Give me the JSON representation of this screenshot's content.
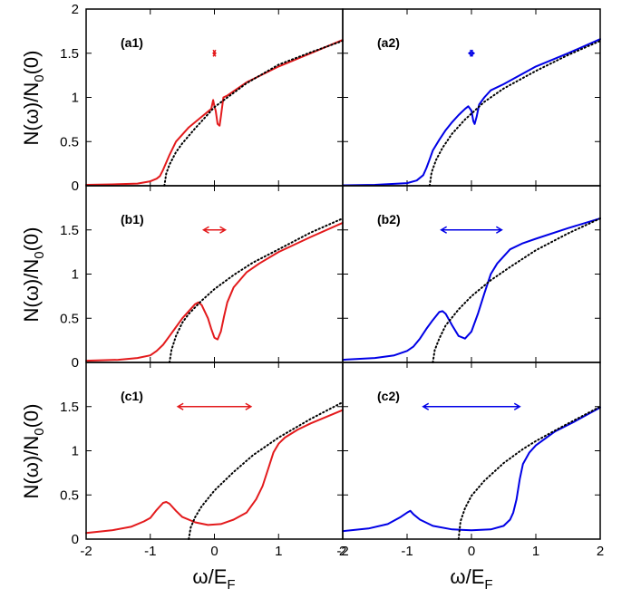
{
  "figure": {
    "ylabel": "N(ω)/N₀(0)",
    "xlabel": "ω/E_F",
    "xlabel_main": "ω/E",
    "xlabel_sub": "F",
    "ylabel_main_1": "N(ω)/N",
    "ylabel_sub": "0",
    "ylabel_main_2": "(0)"
  },
  "colors": {
    "left": "#e31a1c",
    "right": "#0000e6",
    "reference": "#000000"
  },
  "chart_data": [
    {
      "id": "a1",
      "label": "(a1)",
      "type": "line",
      "color": "#e31a1c",
      "xlim": [
        -2,
        2
      ],
      "ylim": [
        0,
        2
      ],
      "yticks": [
        0,
        0.5,
        1,
        1.5,
        2
      ],
      "ytick_labels": [
        "0",
        "0.5",
        "1",
        "1.5",
        "2"
      ],
      "xticks": [
        -2,
        -1,
        0,
        1,
        2
      ],
      "xtick_labels": [],
      "arrow": {
        "y": 1.5,
        "x_start": -0.02,
        "x_end": 0.02
      },
      "series": [
        {
          "style": "solid",
          "x": [
            -2,
            -1.6,
            -1.2,
            -1.0,
            -0.9,
            -0.85,
            -0.8,
            -0.7,
            -0.6,
            -0.4,
            -0.2,
            -0.05,
            -0.02,
            0.0,
            0.02,
            0.05,
            0.08,
            0.1,
            0.14,
            0.2,
            0.5,
            1.0,
            1.5,
            2.0
          ],
          "y": [
            0.01,
            0.015,
            0.025,
            0.05,
            0.08,
            0.11,
            0.18,
            0.35,
            0.5,
            0.66,
            0.78,
            0.87,
            0.97,
            0.9,
            0.85,
            0.7,
            0.68,
            0.78,
            1.0,
            1.02,
            1.17,
            1.35,
            1.5,
            1.65
          ]
        },
        {
          "style": "dotted",
          "x": [
            -0.78,
            -0.75,
            -0.7,
            -0.6,
            -0.5,
            -0.3,
            0.0,
            0.5,
            1.0,
            1.5,
            2.0
          ],
          "y": [
            0.0,
            0.14,
            0.24,
            0.38,
            0.48,
            0.65,
            0.89,
            1.16,
            1.37,
            1.51,
            1.64
          ]
        }
      ]
    },
    {
      "id": "a2",
      "label": "(a2)",
      "type": "line",
      "color": "#0000e6",
      "xlim": [
        -2,
        2
      ],
      "ylim": [
        0,
        2
      ],
      "yticks": [
        0,
        0.5,
        1,
        1.5,
        2
      ],
      "ytick_labels": [],
      "xticks": [
        -2,
        -1,
        0,
        1,
        2
      ],
      "xtick_labels": [],
      "arrow": {
        "y": 1.5,
        "x_start": -0.04,
        "x_end": 0.04
      },
      "series": [
        {
          "style": "solid",
          "x": [
            -2,
            -1.5,
            -1.0,
            -0.85,
            -0.75,
            -0.7,
            -0.65,
            -0.6,
            -0.5,
            -0.4,
            -0.3,
            -0.2,
            -0.1,
            -0.05,
            0.0,
            0.03,
            0.05,
            0.08,
            0.12,
            0.2,
            0.3,
            0.5,
            1.0,
            1.5,
            2.0
          ],
          "y": [
            0.005,
            0.01,
            0.03,
            0.06,
            0.12,
            0.2,
            0.3,
            0.4,
            0.52,
            0.63,
            0.72,
            0.8,
            0.87,
            0.9,
            0.85,
            0.73,
            0.7,
            0.78,
            0.92,
            1.0,
            1.08,
            1.15,
            1.35,
            1.5,
            1.66
          ]
        },
        {
          "style": "dotted",
          "x": [
            -0.65,
            -0.62,
            -0.55,
            -0.45,
            -0.3,
            -0.1,
            0.2,
            0.5,
            1.0,
            1.5,
            2.0
          ],
          "y": [
            0.0,
            0.15,
            0.29,
            0.43,
            0.59,
            0.75,
            0.95,
            1.1,
            1.3,
            1.48,
            1.64
          ]
        }
      ]
    },
    {
      "id": "b1",
      "label": "(b1)",
      "type": "line",
      "color": "#e31a1c",
      "xlim": [
        -2,
        2
      ],
      "ylim": [
        0,
        2
      ],
      "yticks": [
        0,
        0.5,
        1,
        1.5,
        2
      ],
      "ytick_labels": [
        "0",
        "0.5",
        "1",
        "1.5",
        ""
      ],
      "xticks": [
        -2,
        -1,
        0,
        1,
        2
      ],
      "xtick_labels": [],
      "arrow": {
        "y": 1.5,
        "x_start": -0.17,
        "x_end": 0.17
      },
      "series": [
        {
          "style": "solid",
          "x": [
            -2,
            -1.5,
            -1.2,
            -1.0,
            -0.9,
            -0.8,
            -0.7,
            -0.6,
            -0.5,
            -0.4,
            -0.3,
            -0.25,
            -0.2,
            -0.1,
            -0.05,
            0.0,
            0.05,
            0.1,
            0.15,
            0.2,
            0.3,
            0.5,
            0.7,
            1.0,
            1.5,
            2.0
          ],
          "y": [
            0.02,
            0.03,
            0.05,
            0.08,
            0.13,
            0.2,
            0.3,
            0.4,
            0.5,
            0.58,
            0.66,
            0.68,
            0.65,
            0.5,
            0.38,
            0.28,
            0.26,
            0.35,
            0.52,
            0.68,
            0.85,
            1.02,
            1.12,
            1.25,
            1.42,
            1.58
          ]
        },
        {
          "style": "dotted",
          "x": [
            -0.7,
            -0.67,
            -0.6,
            -0.5,
            -0.4,
            -0.2,
            0.0,
            0.3,
            0.6,
            1.0,
            1.5,
            2.0
          ],
          "y": [
            0.0,
            0.14,
            0.3,
            0.45,
            0.55,
            0.7,
            0.83,
            0.99,
            1.13,
            1.28,
            1.47,
            1.63
          ]
        }
      ]
    },
    {
      "id": "b2",
      "label": "(b2)",
      "type": "line",
      "color": "#0000e6",
      "xlim": [
        -2,
        2
      ],
      "ylim": [
        0,
        2
      ],
      "yticks": [
        0,
        0.5,
        1,
        1.5,
        2
      ],
      "ytick_labels": [],
      "xticks": [
        -2,
        -1,
        0,
        1,
        2
      ],
      "xtick_labels": [],
      "arrow": {
        "y": 1.5,
        "x_start": -0.47,
        "x_end": 0.47
      },
      "series": [
        {
          "style": "solid",
          "x": [
            -2,
            -1.5,
            -1.2,
            -1.0,
            -0.9,
            -0.8,
            -0.7,
            -0.6,
            -0.5,
            -0.45,
            -0.4,
            -0.3,
            -0.2,
            -0.1,
            0.0,
            0.1,
            0.2,
            0.3,
            0.4,
            0.6,
            0.8,
            1.0,
            1.5,
            2.0
          ],
          "y": [
            0.03,
            0.05,
            0.08,
            0.13,
            0.18,
            0.27,
            0.38,
            0.48,
            0.57,
            0.58,
            0.55,
            0.42,
            0.3,
            0.27,
            0.35,
            0.55,
            0.78,
            1.0,
            1.12,
            1.28,
            1.35,
            1.4,
            1.52,
            1.63
          ]
        },
        {
          "style": "dotted",
          "x": [
            -0.6,
            -0.57,
            -0.5,
            -0.4,
            -0.2,
            0.0,
            0.3,
            0.6,
            1.0,
            1.5,
            2.0
          ],
          "y": [
            0.0,
            0.14,
            0.27,
            0.42,
            0.6,
            0.75,
            0.93,
            1.08,
            1.27,
            1.46,
            1.63
          ]
        }
      ]
    },
    {
      "id": "c1",
      "label": "(c1)",
      "type": "line",
      "color": "#e31a1c",
      "xlim": [
        -2,
        2
      ],
      "ylim": [
        0,
        2
      ],
      "yticks": [
        0,
        0.5,
        1,
        1.5,
        2
      ],
      "ytick_labels": [
        "0",
        "0.5",
        "1",
        "1.5",
        ""
      ],
      "xticks": [
        -2,
        -1,
        0,
        1,
        2
      ],
      "xtick_labels": [
        "-2",
        "-1",
        "0",
        "1",
        "2"
      ],
      "arrow": {
        "y": 1.5,
        "x_start": -0.57,
        "x_end": 0.57
      },
      "series": [
        {
          "style": "solid",
          "x": [
            -2,
            -1.6,
            -1.3,
            -1.1,
            -1.0,
            -0.9,
            -0.8,
            -0.75,
            -0.7,
            -0.6,
            -0.5,
            -0.3,
            -0.1,
            0.1,
            0.3,
            0.5,
            0.65,
            0.75,
            0.85,
            0.92,
            1.0,
            1.1,
            1.3,
            1.5,
            2.0
          ],
          "y": [
            0.07,
            0.1,
            0.14,
            0.2,
            0.24,
            0.33,
            0.41,
            0.42,
            0.4,
            0.32,
            0.25,
            0.19,
            0.16,
            0.17,
            0.22,
            0.3,
            0.45,
            0.6,
            0.82,
            0.98,
            1.08,
            1.15,
            1.24,
            1.31,
            1.46
          ]
        },
        {
          "style": "dotted",
          "x": [
            -0.4,
            -0.37,
            -0.3,
            -0.2,
            0.0,
            0.3,
            0.6,
            1.0,
            1.5,
            2.0
          ],
          "y": [
            0.0,
            0.13,
            0.25,
            0.37,
            0.55,
            0.76,
            0.95,
            1.15,
            1.36,
            1.55
          ]
        }
      ]
    },
    {
      "id": "c2",
      "label": "(c2)",
      "type": "line",
      "color": "#0000e6",
      "xlim": [
        -2,
        2
      ],
      "ylim": [
        0,
        2
      ],
      "yticks": [
        0,
        0.5,
        1,
        1.5,
        2
      ],
      "ytick_labels": [],
      "xticks": [
        -2,
        -1,
        0,
        1,
        2
      ],
      "xtick_labels": [
        "-2",
        "-1",
        "0",
        "1",
        "2"
      ],
      "arrow": {
        "y": 1.5,
        "x_start": -0.75,
        "x_end": 0.75
      },
      "series": [
        {
          "style": "solid",
          "x": [
            -2,
            -1.6,
            -1.3,
            -1.1,
            -1.0,
            -0.95,
            -0.9,
            -0.8,
            -0.6,
            -0.3,
            0.0,
            0.3,
            0.5,
            0.6,
            0.65,
            0.7,
            0.75,
            0.8,
            0.9,
            1.0,
            1.3,
            1.6,
            2.0
          ],
          "y": [
            0.09,
            0.12,
            0.17,
            0.25,
            0.3,
            0.32,
            0.28,
            0.22,
            0.15,
            0.11,
            0.1,
            0.11,
            0.15,
            0.22,
            0.3,
            0.45,
            0.68,
            0.85,
            0.98,
            1.06,
            1.22,
            1.33,
            1.49
          ]
        },
        {
          "style": "dotted",
          "x": [
            -0.2,
            -0.17,
            -0.1,
            0.0,
            0.2,
            0.5,
            0.8,
            1.0,
            1.4,
            2.0
          ],
          "y": [
            0.0,
            0.2,
            0.35,
            0.49,
            0.66,
            0.86,
            1.02,
            1.11,
            1.27,
            1.5
          ]
        }
      ]
    }
  ]
}
